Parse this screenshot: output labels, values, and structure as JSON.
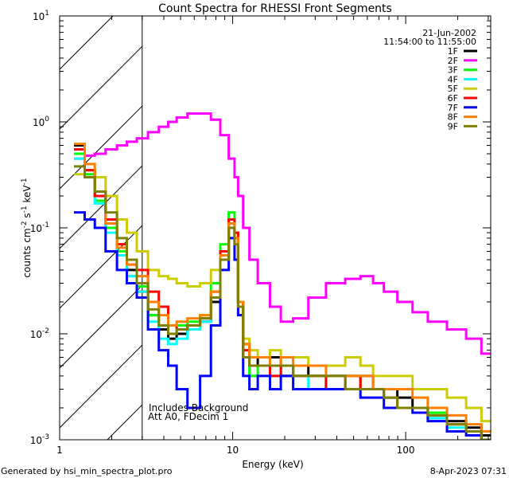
{
  "chart_data": {
    "type": "line",
    "title": "Count Spectra for RHESSI Front Segments",
    "xlabel": "Energy (keV)",
    "ylabel": "counts cm^-2 s^-1 keV^-1",
    "xscale": "log",
    "yscale": "log",
    "xlim": [
      1,
      310
    ],
    "ylim": [
      0.001,
      10
    ],
    "x_ticks": [
      {
        "v": 1,
        "label": "1"
      },
      {
        "v": 10,
        "label": "10"
      },
      {
        "v": 100,
        "label": "100"
      }
    ],
    "y_ticks": [
      {
        "v": 0.001,
        "base": "10",
        "exp": "-3"
      },
      {
        "v": 0.01,
        "base": "10",
        "exp": "-2"
      },
      {
        "v": 0.1,
        "base": "10",
        "exp": "-1"
      },
      {
        "v": 1,
        "base": "10",
        "exp": "0"
      },
      {
        "v": 10,
        "base": "10",
        "exp": "1"
      }
    ],
    "shaded_region": [
      1,
      3
    ],
    "date": "21-Jun-2002",
    "time_range": "11:54:00 to 11:55:00",
    "annotations": [
      "Includes Background",
      "Att A0, FDecim 1"
    ],
    "x": [
      1.3,
      1.5,
      1.7,
      2,
      2.3,
      2.6,
      3,
      3.5,
      4,
      4.5,
      5,
      6,
      7,
      8,
      9,
      10,
      10.5,
      11,
      12,
      13,
      15,
      18,
      20,
      25,
      30,
      40,
      50,
      60,
      70,
      80,
      100,
      120,
      150,
      200,
      250,
      300
    ],
    "series": [
      {
        "name": "1F",
        "color": "#000000",
        "values": [
          0.6,
          0.35,
          0.2,
          0.1,
          0.06,
          0.04,
          0.025,
          0.015,
          0.011,
          0.009,
          0.01,
          0.012,
          0.013,
          0.02,
          0.05,
          0.11,
          0.08,
          0.02,
          0.008,
          0.006,
          0.005,
          0.006,
          0.004,
          0.005,
          0.004,
          0.004,
          0.003,
          0.004,
          0.003,
          0.003,
          0.0025,
          0.002,
          0.002,
          0.0015,
          0.0013,
          0.0011
        ]
      },
      {
        "name": "2F",
        "color": "#ff00ff",
        "values": [
          0.45,
          0.48,
          0.5,
          0.55,
          0.6,
          0.65,
          0.7,
          0.8,
          0.9,
          1.0,
          1.1,
          1.2,
          1.2,
          1.05,
          0.75,
          0.45,
          0.3,
          0.2,
          0.1,
          0.05,
          0.03,
          0.018,
          0.013,
          0.014,
          0.022,
          0.03,
          0.033,
          0.035,
          0.03,
          0.025,
          0.02,
          0.016,
          0.013,
          0.011,
          0.009,
          0.0065
        ]
      },
      {
        "name": "3F",
        "color": "#00ff00",
        "values": [
          0.5,
          0.32,
          0.18,
          0.1,
          0.06,
          0.035,
          0.028,
          0.015,
          0.012,
          0.01,
          0.012,
          0.013,
          0.015,
          0.03,
          0.07,
          0.14,
          0.09,
          0.02,
          0.006,
          0.004,
          0.005,
          0.004,
          0.005,
          0.004,
          0.004,
          0.003,
          0.004,
          0.003,
          0.003,
          0.0025,
          0.002,
          0.002,
          0.0018,
          0.0014,
          0.0012,
          0.001
        ]
      },
      {
        "name": "4F",
        "color": "#00ffff",
        "values": [
          0.45,
          0.3,
          0.17,
          0.09,
          0.055,
          0.035,
          0.025,
          0.013,
          0.009,
          0.008,
          0.009,
          0.011,
          0.013,
          0.025,
          0.06,
          0.12,
          0.08,
          0.02,
          0.007,
          0.005,
          0.005,
          0.004,
          0.005,
          0.004,
          0.003,
          0.004,
          0.003,
          0.003,
          0.003,
          0.0025,
          0.002,
          0.002,
          0.0016,
          0.0013,
          0.0012,
          0.001
        ]
      },
      {
        "name": "5F",
        "color": "#cccc00",
        "values": [
          0.32,
          0.35,
          0.3,
          0.2,
          0.12,
          0.09,
          0.06,
          0.04,
          0.035,
          0.033,
          0.03,
          0.028,
          0.03,
          0.04,
          0.06,
          0.1,
          0.07,
          0.02,
          0.009,
          0.007,
          0.006,
          0.007,
          0.006,
          0.006,
          0.005,
          0.005,
          0.006,
          0.005,
          0.004,
          0.004,
          0.004,
          0.003,
          0.003,
          0.0025,
          0.002,
          0.0015
        ]
      },
      {
        "name": "6F",
        "color": "#ff0000",
        "values": [
          0.55,
          0.35,
          0.2,
          0.12,
          0.07,
          0.045,
          0.04,
          0.025,
          0.018,
          0.012,
          0.011,
          0.012,
          0.014,
          0.025,
          0.06,
          0.12,
          0.09,
          0.02,
          0.007,
          0.005,
          0.005,
          0.004,
          0.005,
          0.004,
          0.004,
          0.003,
          0.004,
          0.003,
          0.003,
          0.0025,
          0.002,
          0.002,
          0.0017,
          0.0014,
          0.0012,
          0.001
        ]
      },
      {
        "name": "7F",
        "color": "#0000ff",
        "values": [
          0.14,
          0.12,
          0.1,
          0.06,
          0.04,
          0.03,
          0.022,
          0.011,
          0.007,
          0.005,
          0.003,
          0.002,
          0.004,
          0.012,
          0.04,
          0.08,
          0.05,
          0.015,
          0.004,
          0.003,
          0.004,
          0.003,
          0.004,
          0.003,
          0.003,
          0.003,
          0.003,
          0.0025,
          0.0025,
          0.002,
          0.002,
          0.0018,
          0.0015,
          0.0012,
          0.0011,
          0.001
        ]
      },
      {
        "name": "8F",
        "color": "#ff8000",
        "values": [
          0.62,
          0.4,
          0.22,
          0.11,
          0.065,
          0.045,
          0.035,
          0.02,
          0.015,
          0.012,
          0.013,
          0.014,
          0.015,
          0.025,
          0.055,
          0.11,
          0.08,
          0.02,
          0.008,
          0.006,
          0.006,
          0.005,
          0.006,
          0.005,
          0.005,
          0.004,
          0.004,
          0.004,
          0.003,
          0.003,
          0.003,
          0.0025,
          0.002,
          0.0017,
          0.0014,
          0.0012
        ]
      },
      {
        "name": "9F",
        "color": "#808000",
        "values": [
          0.38,
          0.3,
          0.22,
          0.14,
          0.08,
          0.05,
          0.03,
          0.017,
          0.012,
          0.01,
          0.011,
          0.012,
          0.014,
          0.022,
          0.05,
          0.1,
          0.07,
          0.018,
          0.006,
          0.005,
          0.005,
          0.005,
          0.005,
          0.004,
          0.004,
          0.004,
          0.003,
          0.003,
          0.003,
          0.0025,
          0.002,
          0.002,
          0.0017,
          0.0014,
          0.0012,
          0.001
        ]
      }
    ]
  },
  "footer": {
    "left": "Generated by hsi_min_spectra_plot.pro",
    "right": "8-Apr-2023 07:31"
  }
}
